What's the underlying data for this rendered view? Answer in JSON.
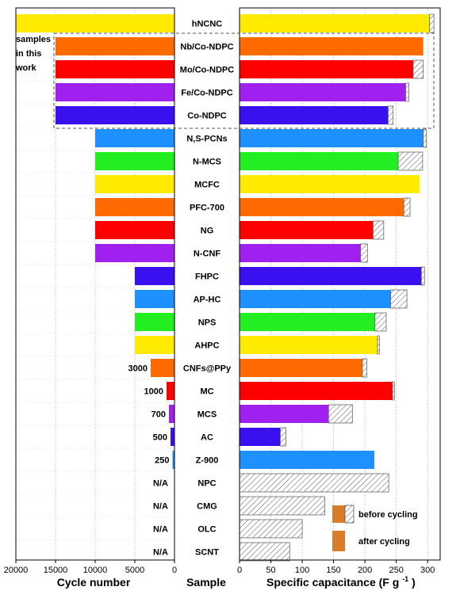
{
  "chart_data": {
    "type": "bar",
    "orientation": "horizontal",
    "categories": [
      "hNCNC",
      "Nb/Co-NDPC",
      "Mo/Co-NDPC",
      "Fe/Co-NDPC",
      "Co-NDPC",
      "N,S-PCNs",
      "N-MCS",
      "MCFC",
      "PFC-700",
      "NG",
      "N-CNF",
      "FHPC",
      "AP-HC",
      "NPS",
      "AHPC",
      "CNFs@PPy",
      "MC",
      "MCS",
      "AC",
      "Z-900",
      "NPC",
      "CMG",
      "OLC",
      "SCNT"
    ],
    "colors": [
      "#FFEB00",
      "#FF6A00",
      "#FF0000",
      "#A020F0",
      "#3A10F0",
      "#1E90FF",
      "#22EE22",
      "#FFEB00",
      "#FF6A00",
      "#FF0000",
      "#A020F0",
      "#3A10F0",
      "#1E90FF",
      "#22EE22",
      "#FFEB00",
      "#FF6A00",
      "#FF0000",
      "#A020F0",
      "#3A10F0",
      "#1E90FF",
      "#FFFFFF",
      "#FFFFFF",
      "#FFFFFF",
      "#FFFFFF"
    ],
    "left_panel": {
      "xlabel": "Cycle number",
      "xlim": [
        20000,
        0
      ],
      "ticks": [
        "20000",
        "15000",
        "10000",
        "5000",
        "0"
      ],
      "values": [
        20000,
        15000,
        15000,
        15000,
        15000,
        10000,
        10000,
        10000,
        10000,
        10000,
        10000,
        5000,
        5000,
        5000,
        5000,
        3000,
        1000,
        700,
        500,
        250,
        null,
        null,
        null,
        null
      ],
      "labels": [
        "",
        "",
        "",
        "",
        "",
        "",
        "",
        "",
        "",
        "",
        "",
        "",
        "",
        "",
        "",
        "3000",
        "1000",
        "700",
        "500",
        "250",
        "N/A",
        "N/A",
        "N/A",
        "N/A"
      ]
    },
    "center_label": "Sample",
    "right_panel": {
      "xlabel": "Specific capacitance (F g",
      "xlabel_sup": "-1",
      "xlabel_end": ")",
      "xlim": [
        0,
        320
      ],
      "ticks": [
        "0",
        "50",
        "100",
        "150",
        "200",
        "250",
        "300"
      ],
      "series": [
        {
          "name": "before cycling",
          "values": [
            310,
            293,
            293,
            270,
            245,
            298,
            292,
            287,
            272,
            230,
            204,
            295,
            267,
            234,
            223,
            203,
            247,
            180,
            74,
            215,
            238,
            136,
            100,
            80
          ]
        },
        {
          "name": "after cycling",
          "values": [
            303,
            293,
            277,
            265,
            237,
            293,
            253,
            287,
            262,
            213,
            193,
            290,
            241,
            216,
            220,
            196,
            244,
            142,
            65,
            215,
            0,
            0,
            0,
            0
          ]
        }
      ],
      "legend": [
        "before cycling",
        "after cycling"
      ],
      "legend_placement": "bottom-right"
    },
    "annotation": "samples in this work",
    "annotation_lines": [
      "samples",
      "in this",
      "work"
    ],
    "group_highlight": [
      "Nb/Co-NDPC",
      "Mo/Co-NDPC",
      "Fe/Co-NDPC",
      "Co-NDPC"
    ],
    "legend_color": "#D97B29",
    "gridlines": "vertical dotted"
  }
}
